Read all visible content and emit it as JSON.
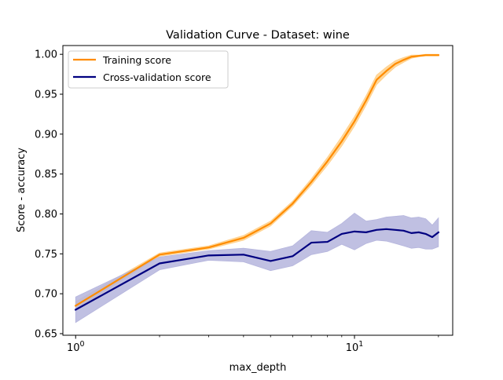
{
  "chart_data": {
    "type": "line",
    "title": "Validation Curve - Dataset: wine",
    "xlabel": "max_depth",
    "ylabel": "Score - accuracy",
    "xscale": "log",
    "xlim": [
      0.9,
      22.5
    ],
    "ylim": [
      0.648,
      1.011
    ],
    "legend_position": "top-left",
    "grid": false,
    "x_ticks": [
      {
        "value": 1,
        "base": "10",
        "exp": "0"
      },
      {
        "value": 10,
        "base": "10",
        "exp": "1"
      }
    ],
    "y_ticks": [
      {
        "value": 0.65,
        "label": "0.65"
      },
      {
        "value": 0.7,
        "label": "0.70"
      },
      {
        "value": 0.75,
        "label": "0.75"
      },
      {
        "value": 0.8,
        "label": "0.80"
      },
      {
        "value": 0.85,
        "label": "0.85"
      },
      {
        "value": 0.9,
        "label": "0.90"
      },
      {
        "value": 0.95,
        "label": "0.95"
      },
      {
        "value": 1.0,
        "label": "1.00"
      }
    ],
    "x": [
      1,
      2,
      3,
      4,
      5,
      6,
      7,
      8,
      9,
      10,
      11,
      12,
      13,
      14,
      15,
      16,
      17,
      18,
      19,
      20
    ],
    "series": [
      {
        "name": "Training score",
        "color": "#ff8c00",
        "band_color": "#ffd08a",
        "mean": [
          0.685,
          0.749,
          0.758,
          0.77,
          0.788,
          0.813,
          0.84,
          0.866,
          0.891,
          0.916,
          0.942,
          0.968,
          0.979,
          0.988,
          0.993,
          0.997,
          0.998,
          0.999,
          0.999,
          0.999
        ],
        "lower": [
          0.68,
          0.747,
          0.756,
          0.767,
          0.785,
          0.81,
          0.836,
          0.861,
          0.885,
          0.91,
          0.936,
          0.962,
          0.974,
          0.984,
          0.99,
          0.995,
          0.997,
          0.998,
          0.998,
          0.998
        ],
        "upper": [
          0.69,
          0.751,
          0.76,
          0.773,
          0.791,
          0.816,
          0.844,
          0.871,
          0.897,
          0.922,
          0.948,
          0.974,
          0.984,
          0.992,
          0.996,
          0.999,
          0.999,
          1.0,
          1.0,
          1.0
        ]
      },
      {
        "name": "Cross-validation score",
        "color": "#000080",
        "band_color": "#b5b5dd",
        "mean": [
          0.68,
          0.738,
          0.748,
          0.749,
          0.741,
          0.747,
          0.764,
          0.765,
          0.775,
          0.778,
          0.777,
          0.78,
          0.781,
          0.78,
          0.779,
          0.776,
          0.777,
          0.775,
          0.771,
          0.777
        ],
        "lower": [
          0.664,
          0.73,
          0.742,
          0.74,
          0.729,
          0.735,
          0.749,
          0.753,
          0.762,
          0.755,
          0.763,
          0.767,
          0.766,
          0.763,
          0.76,
          0.757,
          0.758,
          0.756,
          0.756,
          0.759
        ],
        "upper": [
          0.696,
          0.746,
          0.754,
          0.757,
          0.753,
          0.76,
          0.779,
          0.777,
          0.788,
          0.801,
          0.791,
          0.793,
          0.796,
          0.797,
          0.798,
          0.795,
          0.796,
          0.794,
          0.786,
          0.795
        ]
      }
    ]
  }
}
